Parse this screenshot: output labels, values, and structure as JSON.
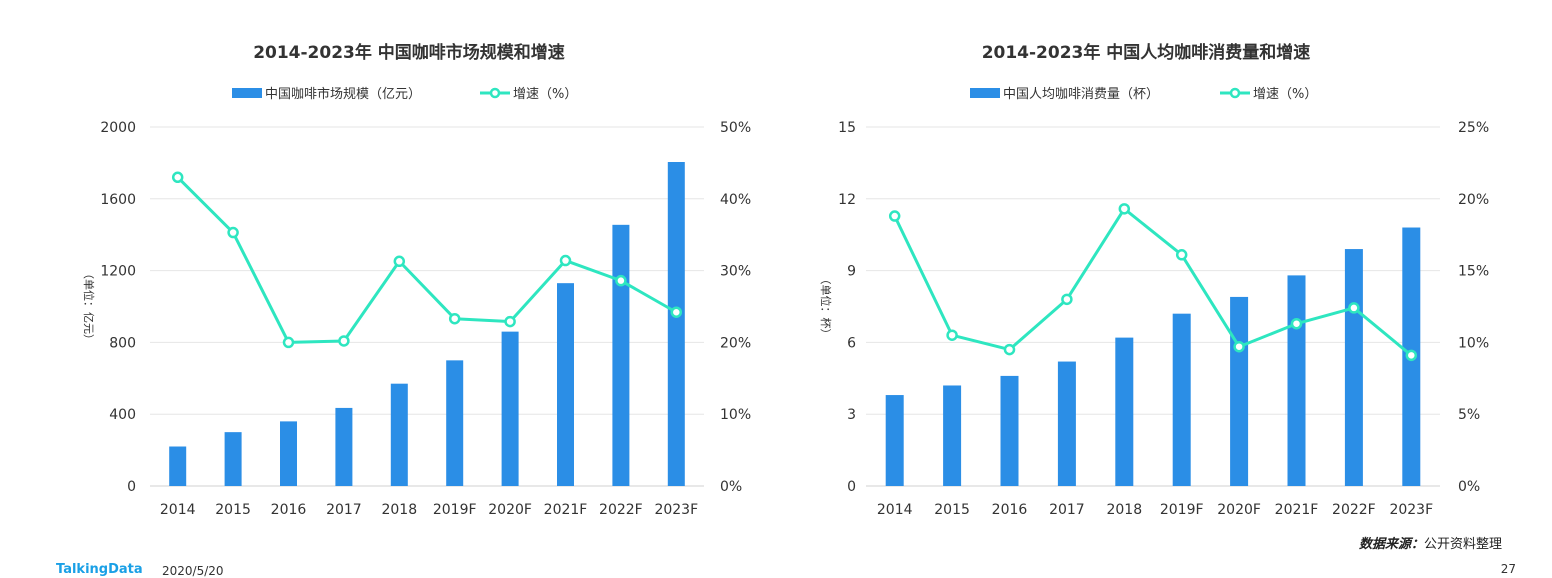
{
  "chart_data": [
    {
      "type": "bar+line",
      "title": "2014-2023年 中国咖啡市场规模和增速",
      "categories": [
        "2014",
        "2015",
        "2016",
        "2017",
        "2018",
        "2019F",
        "2020F",
        "2021F",
        "2022F",
        "2023F"
      ],
      "series": [
        {
          "name": "中国咖啡市场规模（亿元）",
          "kind": "bar",
          "axis": "left",
          "values": [
            220,
            300,
            360,
            435,
            570,
            700,
            860,
            1130,
            1455,
            1805
          ]
        },
        {
          "name": "增速（%）",
          "kind": "line",
          "axis": "right",
          "values": [
            43,
            35.3,
            20,
            20.2,
            31.3,
            23.3,
            22.9,
            31.4,
            28.6,
            24.2
          ]
        }
      ],
      "ylabel": "（单位：亿元）",
      "ylim": [
        0,
        2000
      ],
      "yticks": [
        "0",
        "400",
        "800",
        "1200",
        "1600",
        "2000"
      ],
      "y2lim": [
        0,
        50
      ],
      "y2ticks": [
        "0%",
        "10%",
        "20%",
        "30%",
        "40%",
        "50%"
      ],
      "legend_position": "top-center",
      "grid": true
    },
    {
      "type": "bar+line",
      "title": "2014-2023年 中国人均咖啡消费量和增速",
      "categories": [
        "2014",
        "2015",
        "2016",
        "2017",
        "2018",
        "2019F",
        "2020F",
        "2021F",
        "2022F",
        "2023F"
      ],
      "series": [
        {
          "name": "中国人均咖啡消费量（杯）",
          "kind": "bar",
          "axis": "left",
          "values": [
            3.8,
            4.2,
            4.6,
            5.2,
            6.2,
            7.2,
            7.9,
            8.8,
            9.9,
            10.8
          ]
        },
        {
          "name": "增速（%）",
          "kind": "line",
          "axis": "right",
          "values": [
            18.8,
            10.5,
            9.5,
            13,
            19.3,
            16.1,
            9.7,
            11.3,
            12.4,
            9.1
          ]
        }
      ],
      "ylabel": "（单位：杯）",
      "ylim": [
        0,
        15
      ],
      "yticks": [
        "0",
        "3",
        "6",
        "9",
        "12",
        "15"
      ],
      "y2lim": [
        0,
        25
      ],
      "y2ticks": [
        "0%",
        "5%",
        "10%",
        "15%",
        "20%",
        "25%"
      ],
      "legend_position": "top-center",
      "grid": true
    }
  ],
  "colors": {
    "bar": "#2b8ee6",
    "line": "#2ee6c0",
    "grid": "#e6e6e6",
    "text": "#333333"
  },
  "footer": {
    "brand": "TalkingData",
    "date": "2020/5/20",
    "page": "27",
    "source_label": "数据来源：",
    "source_value": "公开资料整理"
  }
}
